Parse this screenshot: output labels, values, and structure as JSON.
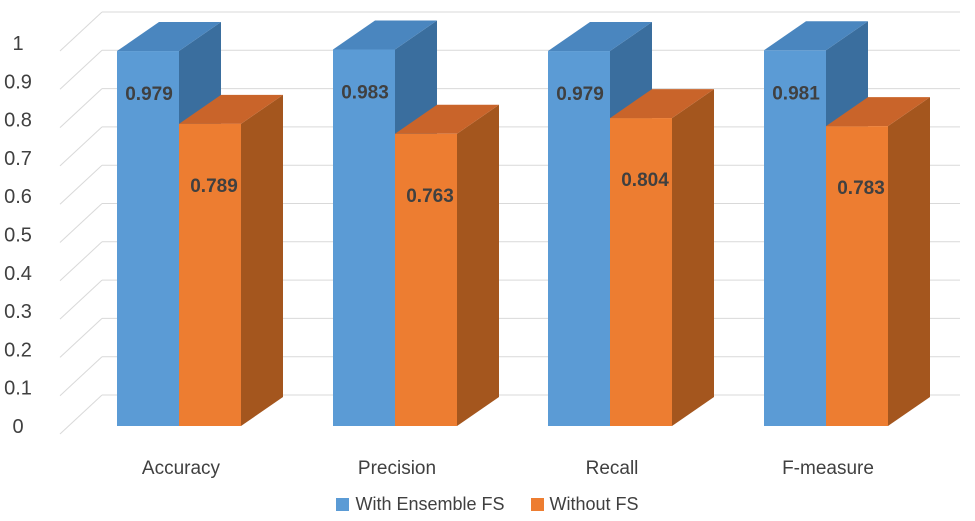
{
  "chart_data": {
    "type": "bar",
    "title": "",
    "xlabel": "",
    "ylabel": "",
    "ylim": [
      0,
      1
    ],
    "yticks": [
      "0",
      "0.1",
      "0.2",
      "0.3",
      "0.4",
      "0.5",
      "0.6",
      "0.7",
      "0.8",
      "0.9",
      "1"
    ],
    "categories": [
      "Accuracy",
      "Precision",
      "Recall",
      "F-measure"
    ],
    "series": [
      {
        "name": "With Ensemble FS",
        "values": [
          0.979,
          0.983,
          0.979,
          0.981
        ],
        "labels": [
          "0.979",
          "0.983",
          "0.979",
          "0.981"
        ]
      },
      {
        "name": "Without FS",
        "values": [
          0.789,
          0.763,
          0.804,
          0.783
        ],
        "labels": [
          "0.789",
          "0.763",
          "0.804",
          "0.783"
        ]
      }
    ],
    "colors": {
      "series": [
        {
          "front": "#5B9BD5",
          "side": "#3A6E9E",
          "top": "#4A86BF"
        },
        {
          "front": "#ED7D31",
          "side": "#A4561E",
          "top": "#C9642A"
        }
      ],
      "grid": "#D9D9D9"
    },
    "grid": true,
    "legend_position": "bottom"
  }
}
